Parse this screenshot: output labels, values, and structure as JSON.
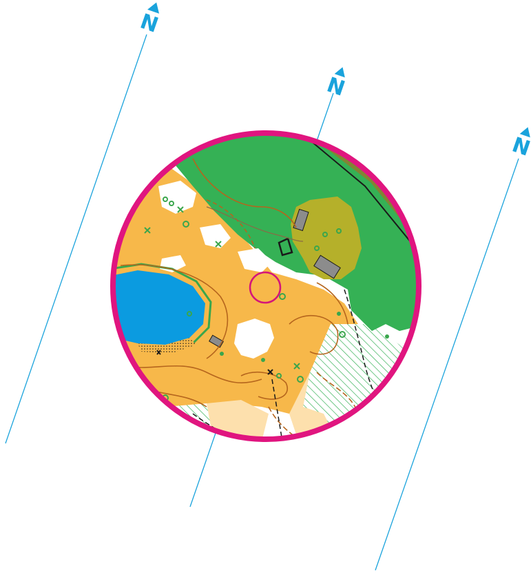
{
  "map": {
    "north_arrows": [
      {
        "glyph": "N"
      },
      {
        "glyph": "N"
      },
      {
        "glyph": "N"
      }
    ],
    "colors": {
      "north_line": "#1aa3dc",
      "map_border": "#e0157f",
      "control_circle": "#d4157a",
      "forest_green": "#35b155",
      "open_yellow": "#f7b84a",
      "rough_open_light": "#fde0ad",
      "water_blue": "#0b9be0",
      "olive_undergrowth": "#b5b02a",
      "building_grey": "#8c8c8c",
      "contour_brown": "#b5651d",
      "vegetation_green_symbols": "#3aa64c",
      "black_features": "#1a1a1a"
    },
    "control": {
      "type": "control-circle"
    }
  }
}
